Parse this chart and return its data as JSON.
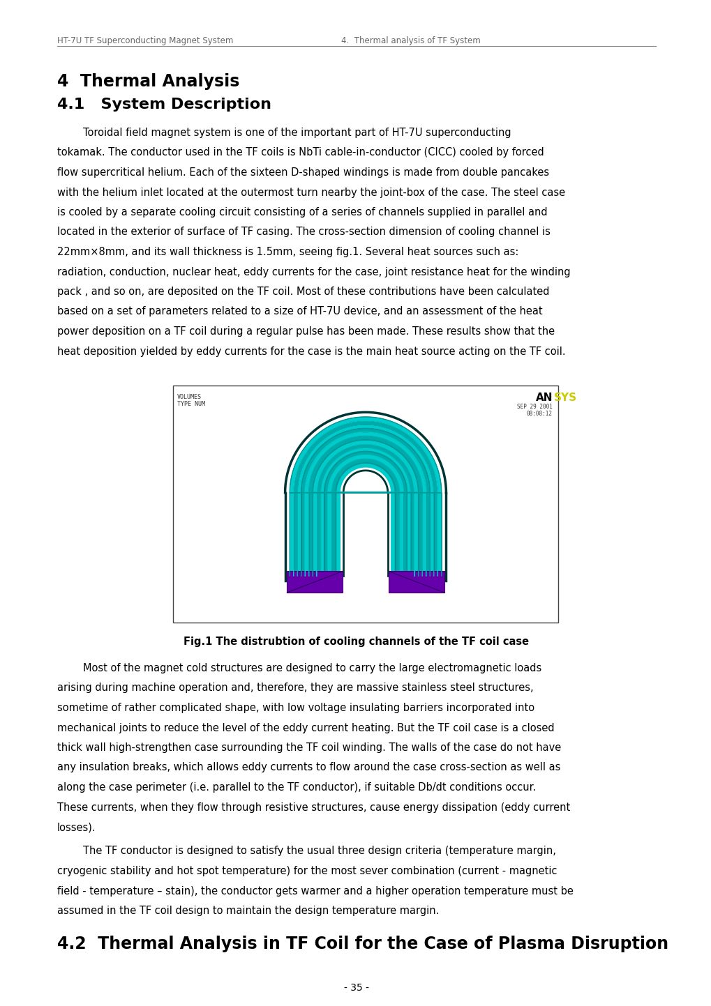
{
  "header_left": "HT-7U TF Superconducting Magnet System",
  "header_right": "4.  Thermal analysis of TF System",
  "section4_title": "4  Thermal Analysis",
  "section41_title": "4.1   System Description",
  "para1_lines": [
    "        Toroidal field magnet system is one of the important part of HT-7U superconducting",
    "tokamak. The conductor used in the TF coils is NbTi cable-in-conductor (CICC) cooled by forced",
    "flow supercritical helium. Each of the sixteen D-shaped windings is made from double pancakes",
    "with the helium inlet located at the outermost turn nearby the joint-box of the case. The steel case",
    "is cooled by a separate cooling circuit consisting of a series of channels supplied in parallel and",
    "located in the exterior of surface of TF casing. The cross-section dimension of cooling channel is",
    "22mm×8mm, and its wall thickness is 1.5mm, seeing fig.1. Several heat sources such as:",
    "radiation, conduction, nuclear heat, eddy currents for the case, joint resistance heat for the winding",
    "pack , and so on, are deposited on the TF coil. Most of these contributions have been calculated",
    "based on a set of parameters related to a size of HT-7U device, and an assessment of the heat",
    "power deposition on a TF coil during a regular pulse has been made. These results show that the",
    "heat deposition yielded by eddy currents for the case is the main heat source acting on the TF coil."
  ],
  "fig_caption": "Fig.1 The distrubtion of cooling channels of the TF coil case",
  "para2_lines": [
    "        Most of the magnet cold structures are designed to carry the large electromagnetic loads",
    "arising during machine operation and, therefore, they are massive stainless steel structures,",
    "sometime of rather complicated shape, with low voltage insulating barriers incorporated into",
    "mechanical joints to reduce the level of the eddy current heating. But the TF coil case is a closed",
    "thick wall high-strengthen case surrounding the TF coil winding. The walls of the case do not have",
    "any insulation breaks, which allows eddy currents to flow around the case cross-section as well as",
    "along the case perimeter (i.e. parallel to the TF conductor), if suitable Db/dt conditions occur.",
    "These currents, when they flow through resistive structures, cause energy dissipation (eddy current",
    "losses)."
  ],
  "para3_lines": [
    "        The TF conductor is designed to satisfy the usual three design criteria (temperature margin,",
    "cryogenic stability and hot spot temperature) for the most sever combination (current - magnetic",
    "field - temperature – stain), the conductor gets warmer and a higher operation temperature must be",
    "assumed in the TF coil design to maintain the design temperature margin."
  ],
  "section42_title": "4.2  Thermal Analysis in TF Coil for the Case of Plasma Disruption",
  "page_num": "- 35 -",
  "bg_color": "#ffffff",
  "text_color": "#000000",
  "header_color": "#666666",
  "ansys_text_color": "#cc0000",
  "ansys_yellow_color": "#ffff00",
  "coil_teal": "#00cccc",
  "coil_dark": "#007777",
  "coil_line": "#005555",
  "purple_color": "#6600aa"
}
